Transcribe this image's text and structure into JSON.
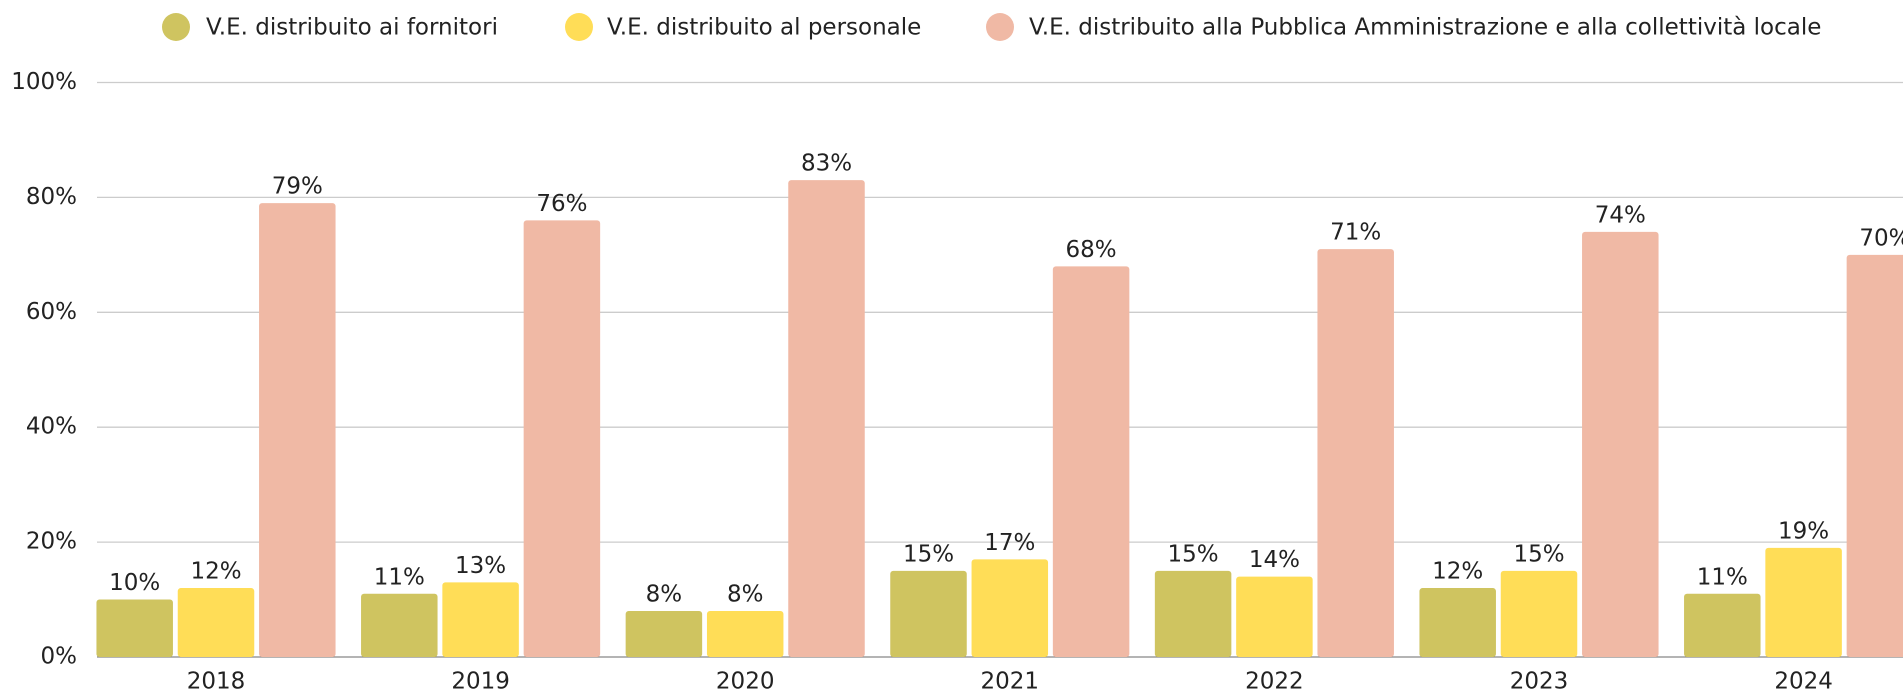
{
  "chart_data": {
    "type": "bar",
    "categories": [
      "2018",
      "2019",
      "2020",
      "2021",
      "2022",
      "2023",
      "2024"
    ],
    "series": [
      {
        "name": "V.E. distribuito ai fornitori",
        "color": "#cfc460",
        "values": [
          10,
          11,
          8,
          15,
          15,
          12,
          11
        ],
        "value_labels": [
          "10%",
          "11%",
          "8%",
          "15%",
          "15%",
          "12%",
          "11%"
        ]
      },
      {
        "name": "V.E. distribuito al personale",
        "color": "#ffdd57",
        "values": [
          12,
          13,
          8,
          17,
          14,
          15,
          19
        ],
        "value_labels": [
          "12%",
          "13%",
          "8%",
          "17%",
          "14%",
          "15%",
          "19%"
        ]
      },
      {
        "name": "V.E. distribuito alla Pubblica Amministrazione e alla collettività locale",
        "color": "#f0b9a5",
        "values": [
          79,
          76,
          83,
          68,
          71,
          74,
          70
        ],
        "value_labels": [
          "79%",
          "76%",
          "83%",
          "68%",
          "71%",
          "74%",
          "70%"
        ]
      }
    ],
    "ylim": [
      0,
      100
    ],
    "yticks": [
      {
        "value": 0,
        "label": "0%"
      },
      {
        "value": 20,
        "label": "20%"
      },
      {
        "value": 40,
        "label": "40%"
      },
      {
        "value": 60,
        "label": "60%"
      },
      {
        "value": 80,
        "label": "80%"
      },
      {
        "value": 100,
        "label": "100%"
      }
    ],
    "grid": true,
    "legend": "top"
  }
}
